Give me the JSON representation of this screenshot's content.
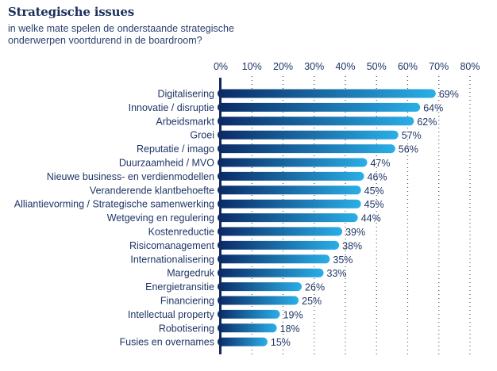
{
  "header": {
    "title": "Strategische issues",
    "subtitle_line1": "in welke mate spelen de onderstaande strategische",
    "subtitle_line2": "onderwerpen voortdurend in de boardroom?"
  },
  "colors": {
    "text": "#1f3566",
    "bar_start": "#0a2a66",
    "bar_end": "#2aaee6",
    "axis": "#0f2a5e",
    "grid": "#555555"
  },
  "chart_data": {
    "type": "bar",
    "orientation": "horizontal",
    "title": "Strategische issues",
    "subtitle": "in welke mate spelen de onderstaande strategische onderwerpen voortdurend in de boardroom?",
    "xlabel": "",
    "ylabel": "",
    "xlim": [
      0,
      80
    ],
    "x_ticks": [
      "0%",
      "10%",
      "20%",
      "30%",
      "40%",
      "50%",
      "60%",
      "70%",
      "80%"
    ],
    "x_tick_values": [
      0,
      10,
      20,
      30,
      40,
      50,
      60,
      70,
      80
    ],
    "x_axis_position": "top",
    "grid": "vertical dotted",
    "categories": [
      "Digitalisering",
      "Innovatie / disruptie",
      "Arbeidsmarkt",
      "Groei",
      "Reputatie / imago",
      "Duurzaamheid / MVO",
      "Nieuwe business- en verdienmodellen",
      "Veranderende klantbehoefte",
      "Alliantievorming / Strategische samenwerking",
      "Wetgeving en regulering",
      "Kostenreductie",
      "Risicomanagement",
      "Internationalisering",
      "Margedruk",
      "Energietransitie",
      "Financiering",
      "Intellectual property",
      "Robotisering",
      "Fusies en overnames"
    ],
    "values": [
      69,
      64,
      62,
      57,
      56,
      47,
      46,
      45,
      45,
      44,
      39,
      38,
      35,
      33,
      26,
      25,
      19,
      18,
      15
    ],
    "value_labels": [
      "69%",
      "64%",
      "62%",
      "57%",
      "56%",
      "47%",
      "46%",
      "45%",
      "45%",
      "44%",
      "39%",
      "38%",
      "35%",
      "33%",
      "26%",
      "25%",
      "19%",
      "18%",
      "15%"
    ]
  }
}
